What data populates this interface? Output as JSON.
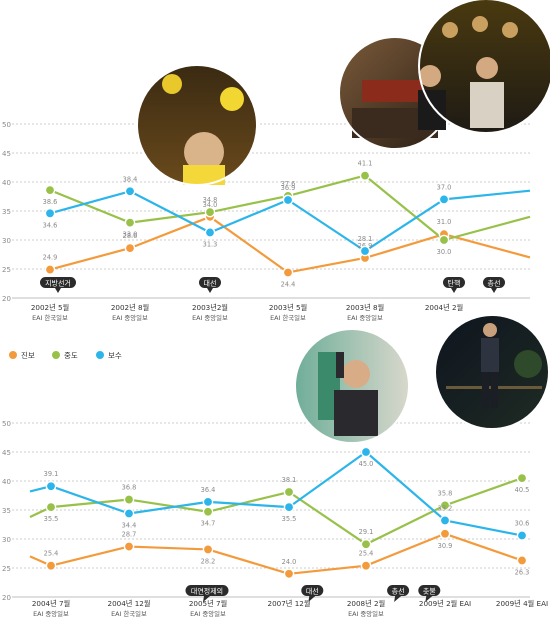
{
  "colors": {
    "progressive": "#f39b3c",
    "moderate": "#98c14a",
    "conservative": "#2cb5ea",
    "grid": "#bfbfbf",
    "tag_bg": "#2b2b2b",
    "tick_text": "#8a8a8a",
    "axis_text": "#333333",
    "value_text": "#8a8a8a"
  },
  "legend": {
    "progressive": "진보",
    "moderate": "중도",
    "conservative": "보수"
  },
  "icons": {
    "photos": [
      "rally-photo-icon",
      "assembly-photo-icon",
      "crowd-photo-icon",
      "train-photo-icon",
      "night-walk-photo-icon"
    ]
  },
  "chart_data": [
    {
      "type": "line",
      "ylim": [
        20,
        50
      ],
      "yticks": [
        20,
        25,
        30,
        35,
        40,
        45,
        50
      ],
      "categories": [
        [
          "2002년 5월",
          "EAI 한국일보"
        ],
        [
          "2002년 8월",
          "EAI 중앙일보"
        ],
        [
          "2003년2월",
          "EAI 중앙일보"
        ],
        [
          "2003년 5월",
          "EAI 한국일보"
        ],
        [
          "2003년 8월",
          "EAI 중앙일보"
        ],
        [
          "2004년 2월",
          ""
        ]
      ],
      "series": [
        {
          "name": "진보",
          "key": "progressive",
          "values": [
            24.9,
            28.6,
            34.0,
            24.4,
            26.9,
            31.0
          ],
          "tail": 27.0
        },
        {
          "name": "중도",
          "key": "moderate",
          "values": [
            38.6,
            33.0,
            34.8,
            37.6,
            41.1,
            30.0
          ],
          "tail": 34.0
        },
        {
          "name": "보수",
          "key": "conservative",
          "values": [
            34.6,
            38.4,
            31.3,
            36.9,
            28.1,
            37.0
          ],
          "tail": 38.5
        }
      ],
      "labels": [
        [
          "24.9",
          "28.6",
          "34.0",
          "24.4",
          "26.9",
          "31.0"
        ],
        [
          "38.6",
          "33.0",
          "34.8",
          "37.6",
          "41.1",
          "30.0"
        ],
        [
          "34.6",
          "38.4",
          "31.3",
          "36.9",
          "28.1",
          "37.0"
        ]
      ],
      "events": [
        {
          "label": "지방선거",
          "x": 0.1
        },
        {
          "label": "대선",
          "x": 2.0
        },
        {
          "label": "탄핵",
          "x": 5.05
        },
        {
          "label": "총선",
          "x": 5.55
        }
      ]
    },
    {
      "type": "line",
      "ylim": [
        20,
        50
      ],
      "yticks": [
        20,
        25,
        30,
        35,
        40,
        45,
        50
      ],
      "categories": [
        [
          "2004년 7월",
          "EAI 중앙일보"
        ],
        [
          "2004년 12월",
          "EAI 한국일보"
        ],
        [
          "2005년 7월",
          "EAI 중앙일보"
        ],
        [
          "2007년 12월",
          ""
        ],
        [
          "2008년 2월",
          "EAI 중앙일보"
        ],
        [
          "2009년 2월 EAI",
          ""
        ],
        [
          "2009년 4월 EAI",
          ""
        ]
      ],
      "series": [
        {
          "name": "진보",
          "key": "progressive",
          "values": [
            25.4,
            28.7,
            28.2,
            24.0,
            25.4,
            30.9,
            26.3
          ],
          "head": 27.0
        },
        {
          "name": "중도",
          "key": "moderate",
          "values": [
            35.5,
            36.8,
            34.7,
            38.1,
            29.1,
            35.8,
            40.5
          ],
          "head": 33.8
        },
        {
          "name": "보수",
          "key": "conservative",
          "values": [
            39.1,
            34.4,
            36.4,
            35.5,
            45.0,
            33.2,
            30.6
          ],
          "head": 38.2
        }
      ],
      "labels": [
        [
          "25.4",
          "28.7",
          "28.2",
          "24.0",
          "25.4",
          "30.9",
          "26.3"
        ],
        [
          "35.5",
          "36.8",
          "34.7",
          "38.1",
          "29.1",
          "35.8",
          "40.5"
        ],
        [
          "39.1",
          "34.4",
          "36.4",
          "35.5",
          "45.0",
          "33.2",
          "30.6"
        ]
      ],
      "events": [
        {
          "label": "대연정제의",
          "x": 2.0
        },
        {
          "label": "대선",
          "x": 3.35
        },
        {
          "label": "총선",
          "x": 4.45
        },
        {
          "label": "촛불",
          "x": 4.85
        }
      ]
    }
  ]
}
